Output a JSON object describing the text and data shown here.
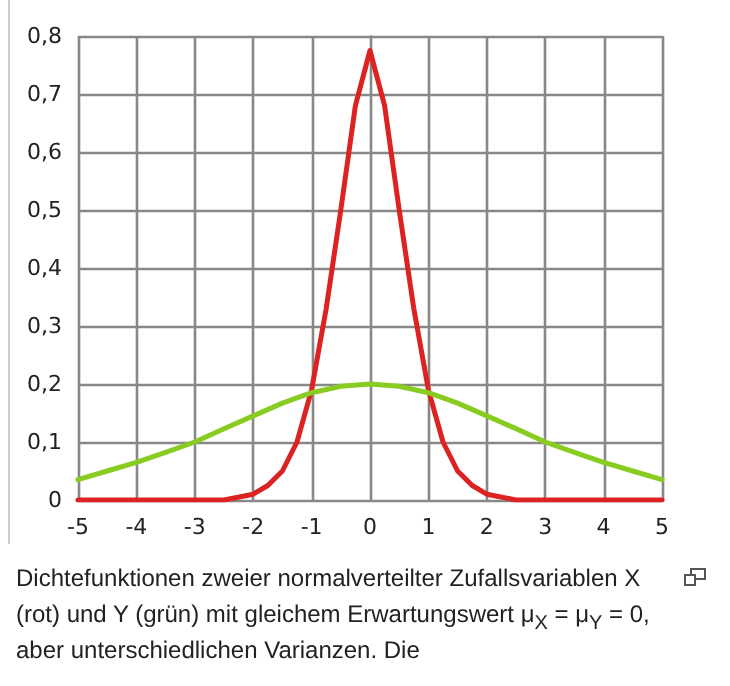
{
  "chart_data": {
    "type": "line",
    "annotations": [
      "Dichtefunktionen zweier normalverteilter Zufallsvariablen X (rot) und Y (grün) mit gleichem Erwartungswert μ$_{X}$ = μ$_{Y}$ = 0, aber unterschiedlichen Varianzen. Die"
    ],
    "series": [
      {
        "color": "#dd2222",
        "x": [
          -5,
          -2.5,
          -2,
          -1.75,
          -1.5,
          -1.25,
          -1,
          -0.75,
          -0.5,
          -0.25,
          0,
          0.25,
          0.5,
          0.75,
          1,
          1.25,
          1.5,
          1.75,
          2,
          2.5,
          5
        ],
        "values": [
          0,
          0,
          0.01,
          0.025,
          0.05,
          0.1,
          0.19,
          0.33,
          0.5,
          0.68,
          0.775,
          0.68,
          0.5,
          0.33,
          0.19,
          0.1,
          0.05,
          0.025,
          0.01,
          0,
          0
        ]
      },
      {
        "color": "#88cc22",
        "x": [
          -5,
          -4.5,
          -4,
          -3.5,
          -3,
          -2.5,
          -2,
          -1.5,
          -1,
          -0.5,
          0,
          0.5,
          1,
          1.5,
          2,
          2.5,
          3,
          3.5,
          4,
          4.5,
          5
        ],
        "values": [
          0.035,
          0.05,
          0.065,
          0.082,
          0.1,
          0.123,
          0.145,
          0.167,
          0.185,
          0.196,
          0.2,
          0.196,
          0.185,
          0.167,
          0.145,
          0.123,
          0.1,
          0.082,
          0.065,
          0.05,
          0.035
        ]
      }
    ],
    "xlim": [
      -5,
      5
    ],
    "xticks": [
      -5,
      -4,
      -3,
      -2,
      -1,
      0,
      1,
      2,
      3,
      4,
      5
    ],
    "ylim": [
      0,
      0.8
    ],
    "yticks": [
      0,
      {
        "value": 0.1,
        "label": "0,1"
      },
      {
        "value": 0.2,
        "label": "0,2"
      },
      {
        "value": 0.3,
        "label": "0,3"
      },
      {
        "value": 0.4,
        "label": "0,4"
      },
      {
        "value": 0.5,
        "label": "0,5"
      },
      {
        "value": 0.6,
        "label": "0,6"
      },
      {
        "value": 0.7,
        "label": "0,7"
      },
      {
        "value": 0.8,
        "label": "0,8"
      }
    ],
    "grid": true,
    "marker": "none",
    "line_style": "solid"
  }
}
